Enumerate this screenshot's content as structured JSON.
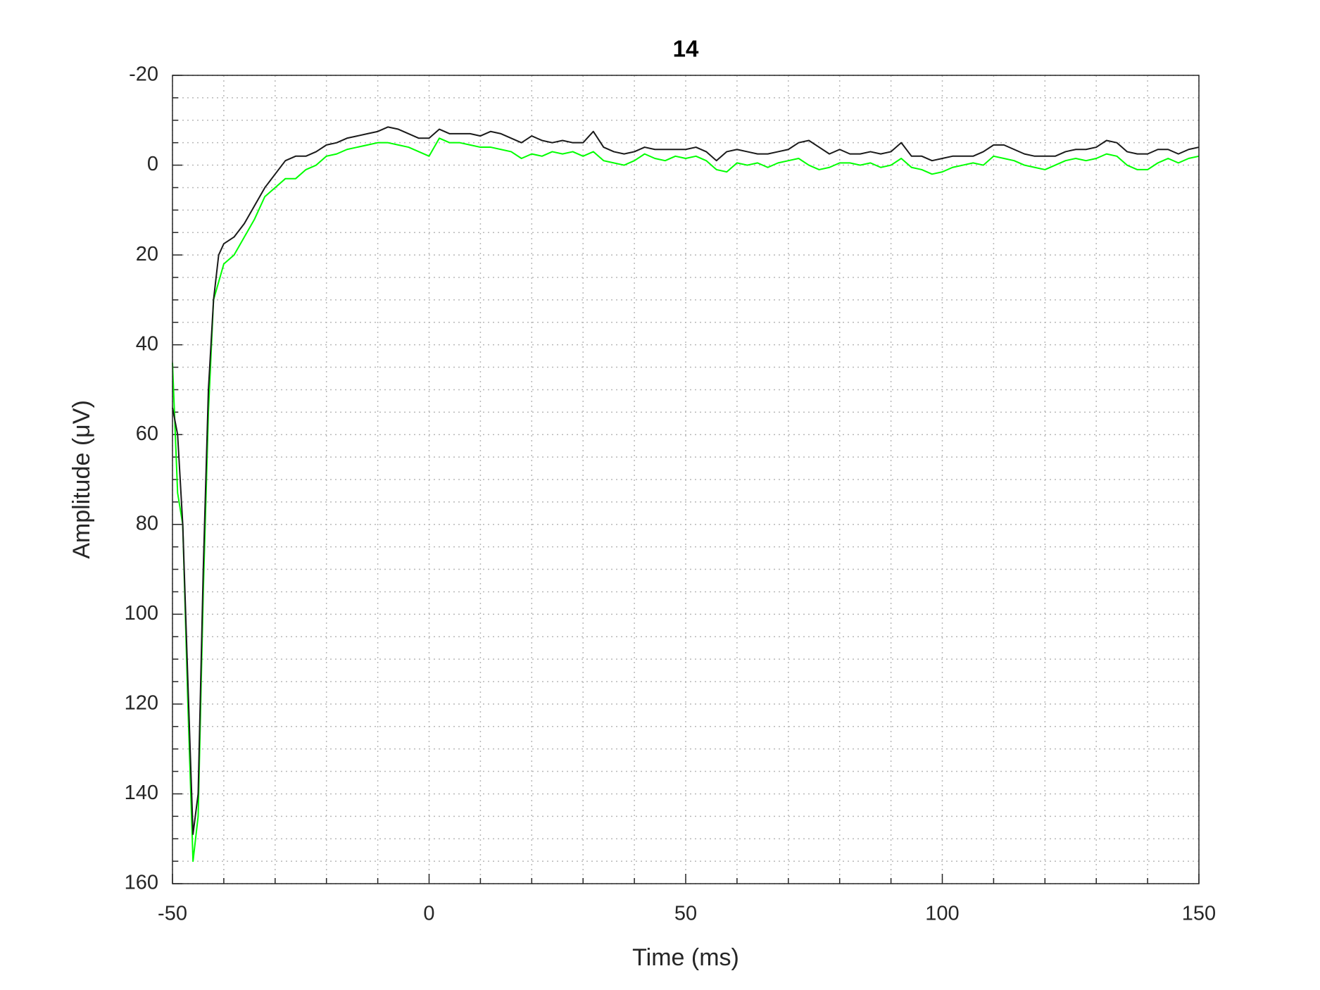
{
  "chart_data": {
    "type": "line",
    "title": "14",
    "xlabel": "Time (ms)",
    "ylabel": "Amplitude (μV)",
    "x": [
      -50,
      -49,
      -48,
      -47,
      -46,
      -45,
      -44,
      -43,
      -42,
      -41,
      -40,
      -38,
      -36,
      -34,
      -32,
      -30,
      -28,
      -26,
      -24,
      -22,
      -20,
      -18,
      -16,
      -14,
      -12,
      -10,
      -8,
      -6,
      -4,
      -2,
      0,
      2,
      4,
      6,
      8,
      10,
      12,
      14,
      16,
      18,
      20,
      22,
      24,
      26,
      28,
      30,
      32,
      34,
      36,
      38,
      40,
      42,
      44,
      46,
      48,
      50,
      52,
      54,
      56,
      58,
      60,
      62,
      64,
      66,
      68,
      70,
      72,
      74,
      76,
      78,
      80,
      82,
      84,
      86,
      88,
      90,
      92,
      94,
      96,
      98,
      100,
      102,
      104,
      106,
      108,
      110,
      112,
      114,
      116,
      118,
      120,
      122,
      124,
      126,
      128,
      130,
      132,
      134,
      136,
      138,
      140,
      142,
      144,
      146,
      148,
      150
    ],
    "series": [
      {
        "color": "#1a1a1a",
        "values": [
          54,
          60,
          80,
          115,
          149,
          140,
          90,
          50,
          30,
          20,
          17.5,
          16,
          13,
          9,
          5,
          2,
          -1,
          -2,
          -2,
          -3,
          -4.5,
          -5,
          -6,
          -6.5,
          -7,
          -7.5,
          -8.5,
          -8,
          -7,
          -6,
          -6,
          -8,
          -7,
          -7,
          -7,
          -6.5,
          -7.5,
          -7,
          -6,
          -5,
          -6.5,
          -5.5,
          -5,
          -5.5,
          -5,
          -5,
          -7.5,
          -4,
          -3,
          -2.5,
          -3,
          -4,
          -3.5,
          -3.5,
          -3.5,
          -3.5,
          -4,
          -3,
          -1,
          -3,
          -3.5,
          -3,
          -2.5,
          -2.5,
          -3,
          -3.5,
          -5,
          -5.5,
          -4,
          -2.5,
          -3.5,
          -2.5,
          -2.5,
          -3,
          -2.5,
          -3,
          -5,
          -2,
          -2,
          -1,
          -1.5,
          -2,
          -2,
          -2,
          -3,
          -4.5,
          -4.5,
          -3.5,
          -2.5,
          -2,
          -2,
          -2,
          -3,
          -3.5,
          -3.5,
          -4,
          -5.5,
          -5,
          -3,
          -2.5,
          -2.5,
          -3.5,
          -3.5,
          -2.5,
          -3.5,
          -4
        ]
      },
      {
        "color": "#00ff00",
        "values": [
          44,
          73,
          80,
          120,
          155,
          145,
          95,
          55,
          30,
          26,
          22,
          20,
          16,
          12,
          7,
          5,
          3,
          3,
          1,
          0,
          -2,
          -2.5,
          -3.5,
          -4,
          -4.5,
          -5,
          -5,
          -4.5,
          -4,
          -3,
          -2,
          -6,
          -5,
          -5,
          -4.5,
          -4,
          -4,
          -3.5,
          -3,
          -1.5,
          -2.5,
          -2,
          -3,
          -2.5,
          -3,
          -2,
          -3,
          -1,
          -0.5,
          0,
          -1,
          -2.5,
          -1.5,
          -1,
          -2,
          -1.5,
          -2,
          -1,
          1,
          1.5,
          -0.5,
          0,
          -0.5,
          0.5,
          -0.5,
          -1,
          -1.5,
          0,
          1,
          0.5,
          -0.5,
          -0.5,
          0,
          -0.5,
          0.5,
          0,
          -1.5,
          0.5,
          1,
          2,
          1.5,
          0.5,
          0,
          -0.5,
          0,
          -2,
          -1.5,
          -1,
          0,
          0.5,
          1,
          0,
          -1,
          -1.5,
          -1,
          -1.5,
          -2.5,
          -2,
          0,
          1,
          1,
          -0.5,
          -1.5,
          -0.5,
          -1.5,
          -2
        ]
      }
    ],
    "xlim": [
      -50,
      150
    ],
    "xticks": [
      -50,
      0,
      50,
      100,
      150
    ],
    "ylim": [
      -20,
      160
    ],
    "yticks": [
      -20,
      0,
      20,
      40,
      60,
      80,
      100,
      120,
      140,
      160
    ],
    "y_reversed": true,
    "grid": true,
    "minor_grid": true
  }
}
